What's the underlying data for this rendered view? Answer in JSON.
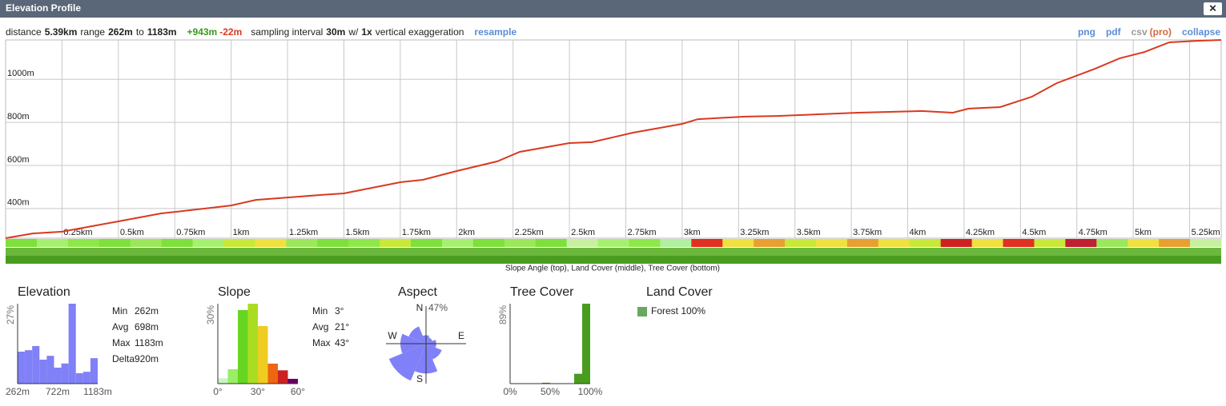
{
  "window": {
    "title": "Elevation Profile",
    "close": "✕"
  },
  "summary": {
    "distance_label": "distance",
    "distance": "5.39km",
    "range_label": "range",
    "range_min": "262m",
    "to": "to",
    "range_max": "1183m",
    "gain": "+943m",
    "loss": "-22m",
    "sampling_label": "sampling interval",
    "interval": "30m",
    "w": "w/",
    "exaggeration": "1x",
    "exaggeration_label": "vertical exaggeration",
    "resample": "resample"
  },
  "links": {
    "png": "png",
    "pdf": "pdf",
    "csv": "csv",
    "pro": "(pro)",
    "collapse": "collapse"
  },
  "profile": {
    "type": "line",
    "color": "#d9391f",
    "x": [
      0,
      0.12,
      0.25,
      0.4,
      0.5,
      0.69,
      0.76,
      1.0,
      1.11,
      1.25,
      1.4,
      1.5,
      1.75,
      1.85,
      2.0,
      2.18,
      2.28,
      2.5,
      2.6,
      2.78,
      3.0,
      3.07,
      3.28,
      3.42,
      3.78,
      4.06,
      4.2,
      4.27,
      4.41,
      4.55,
      4.66,
      4.83,
      4.94,
      5.05,
      5.16,
      5.28,
      5.39
    ],
    "y": [
      262,
      284,
      292,
      321,
      340,
      377,
      385,
      414,
      440,
      451,
      463,
      470,
      522,
      533,
      574,
      619,
      663,
      704,
      708,
      752,
      793,
      815,
      827,
      830,
      845,
      853,
      845,
      864,
      871,
      919,
      982,
      1049,
      1098,
      1127,
      1172,
      1179,
      1183
    ],
    "xlim": [
      0,
      5.39
    ],
    "ylim": [
      262,
      1183
    ],
    "xticks": [
      {
        "value": 0.25,
        "label": "0.25km"
      },
      {
        "value": 0.5,
        "label": "0.5km"
      },
      {
        "value": 0.75,
        "label": "0.75km"
      },
      {
        "value": 1,
        "label": "1km"
      },
      {
        "value": 1.25,
        "label": "1.25km"
      },
      {
        "value": 1.5,
        "label": "1.5km"
      },
      {
        "value": 1.75,
        "label": "1.75km"
      },
      {
        "value": 2,
        "label": "2km"
      },
      {
        "value": 2.25,
        "label": "2.25km"
      },
      {
        "value": 2.5,
        "label": "2.5km"
      },
      {
        "value": 2.75,
        "label": "2.75km"
      },
      {
        "value": 3,
        "label": "3km"
      },
      {
        "value": 3.25,
        "label": "3.25km"
      },
      {
        "value": 3.5,
        "label": "3.5km"
      },
      {
        "value": 3.75,
        "label": "3.75km"
      },
      {
        "value": 4,
        "label": "4km"
      },
      {
        "value": 4.25,
        "label": "4.25km"
      },
      {
        "value": 4.5,
        "label": "4.5km"
      },
      {
        "value": 4.75,
        "label": "4.75km"
      },
      {
        "value": 5,
        "label": "5km"
      },
      {
        "value": 5.25,
        "label": "5.25km"
      }
    ],
    "yticks": [
      {
        "value": 400,
        "label": "400m"
      },
      {
        "value": 600,
        "label": "600m"
      },
      {
        "value": 800,
        "label": "800m"
      },
      {
        "value": 1000,
        "label": "1000m"
      }
    ],
    "grid": true,
    "slope_colors": [
      "#7ee03a",
      "#a6f070",
      "#8fe84a",
      "#7ee03a",
      "#9be85a",
      "#7ee03a",
      "#a6f070",
      "#c8e83a",
      "#f0e040",
      "#9be85a",
      "#7ee03a",
      "#8fe84a",
      "#c8e83a",
      "#7ee03a",
      "#a6f070",
      "#7ee03a",
      "#9be85a",
      "#7ee03a",
      "#c8f0a0",
      "#a6f070",
      "#8fe84a",
      "#b0f0a0",
      "#e03020",
      "#f0e040",
      "#e8a030",
      "#c8e83a",
      "#f0e040",
      "#e8a030",
      "#f0e040",
      "#c8e83a",
      "#d02020",
      "#f0e040",
      "#e03020",
      "#c8e83a",
      "#c02030",
      "#9be85a",
      "#f0e040",
      "#e8a030",
      "#c8f0a0"
    ],
    "caption": "Slope Angle (top), Land Cover (middle), Tree Cover (bottom)"
  },
  "stats": {
    "elevation": {
      "title": "Elevation",
      "ymax": {
        "value": 27,
        "label": "27%"
      },
      "values": [
        10.8,
        11.3,
        12.7,
        8.1,
        9.4,
        5.4,
        6.8,
        27,
        3.5,
        4,
        8.6
      ],
      "color": "#8080f8",
      "xlabels": [
        "262m",
        "722m",
        "1183m"
      ],
      "rows": [
        [
          "Min",
          "262m"
        ],
        [
          "Avg",
          "698m"
        ],
        [
          "Max",
          "1183m"
        ],
        [
          "Delta",
          "920m"
        ]
      ]
    },
    "slope": {
      "title": "Slope",
      "ymax": {
        "value": 30,
        "label": "30%"
      },
      "values": [
        2,
        5.4,
        27.6,
        30,
        21.6,
        7.5,
        5,
        1.8
      ],
      "colors": [
        "#c8f5c0",
        "#99ee66",
        "#66d622",
        "#aadd22",
        "#eecc22",
        "#ee6611",
        "#cc2222",
        "#660066"
      ],
      "xlabels": [
        "0°",
        "30°",
        "60°"
      ],
      "rows": [
        [
          "Min",
          "3°"
        ],
        [
          "Avg",
          "21°"
        ],
        [
          "Max",
          "43°"
        ]
      ]
    },
    "aspect": {
      "title": "Aspect",
      "rmax": {
        "value": 47,
        "label": "47%"
      },
      "directions": [
        "N",
        "E",
        "S",
        "W"
      ],
      "values": [
        10,
        8,
        12,
        20,
        35,
        47,
        30,
        22
      ],
      "color": "#8080f8"
    },
    "tree_cover": {
      "title": "Tree Cover",
      "ymax": {
        "value": 89,
        "label": "89%"
      },
      "values": [
        0,
        0,
        0,
        0,
        1,
        0,
        0,
        0,
        11,
        89
      ],
      "color": "#4a9c20",
      "xlabels": [
        "0%",
        "50%",
        "100%"
      ]
    },
    "land_cover": {
      "title": "Land Cover",
      "items": [
        {
          "label": "Forest 100%",
          "color": "#6aa860"
        }
      ]
    }
  }
}
